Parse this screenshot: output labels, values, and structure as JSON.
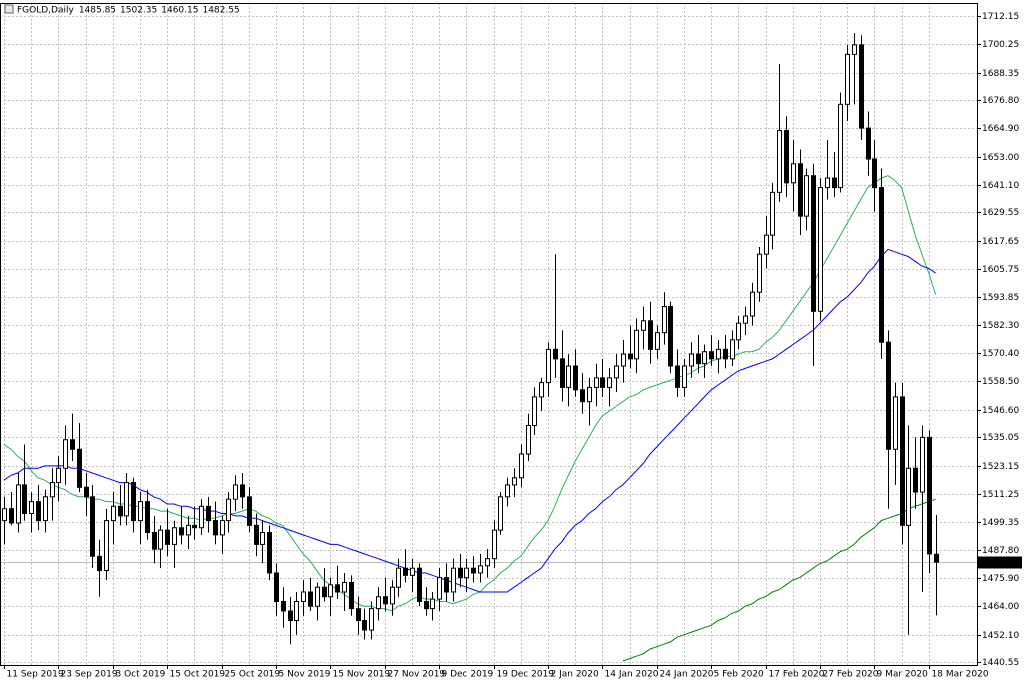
{
  "chart_data": {
    "type": "candlestick",
    "title": "FGOLD,Daily",
    "header_values": [
      "chart_data.open.137",
      "chart_data.high.137",
      "chart_data.low.137",
      "chart_data.close.137"
    ],
    "up_color": "#ffffff",
    "down_color": "#000000",
    "wick_color": "#000000",
    "grid": true,
    "ylim": [
      1439.3,
      1717.6
    ],
    "yticks": [
      1712.15,
      1700.25,
      1688.35,
      {
        "value": 1676.8,
        "label": "1676.80"
      },
      {
        "value": 1664.9,
        "label": "1664.90"
      },
      {
        "value": 1653,
        "label": "1653.00"
      },
      {
        "value": 1641.1,
        "label": "1641.10"
      },
      1629.55,
      1617.65,
      1605.75,
      1593.85,
      {
        "value": 1582.3,
        "label": "1582.30"
      },
      {
        "value": 1570.4,
        "label": "1570.40"
      },
      {
        "value": 1558.5,
        "label": "1558.50"
      },
      {
        "value": 1546.6,
        "label": "1546.60"
      },
      1535.05,
      1523.15,
      1511.25,
      1499.35,
      {
        "value": 1487.8,
        "label": "1487.80"
      },
      {
        "value": 1475.9,
        "label": "1475.90"
      },
      {
        "value": 1464,
        "label": "1464.00"
      },
      {
        "value": 1452.1,
        "label": "1452.10"
      },
      1440.55
    ],
    "categories": [
      "11 Sep 2019",
      null,
      null,
      null,
      null,
      null,
      null,
      null,
      "23 Sep 2019",
      null,
      null,
      null,
      null,
      null,
      null,
      null,
      "3 Oct 2019",
      null,
      null,
      null,
      null,
      null,
      null,
      null,
      "15 Oct 2019",
      null,
      null,
      null,
      null,
      null,
      null,
      null,
      "25 Oct 2019",
      null,
      null,
      null,
      null,
      null,
      null,
      null,
      "5 Nov 2019",
      null,
      null,
      null,
      null,
      null,
      null,
      null,
      "15 Nov 2019",
      null,
      null,
      null,
      null,
      null,
      null,
      null,
      "27 Nov 2019",
      null,
      null,
      null,
      null,
      null,
      null,
      null,
      "9 Dec 2019",
      null,
      null,
      null,
      null,
      null,
      null,
      null,
      "19 Dec 2019",
      null,
      null,
      null,
      null,
      null,
      null,
      null,
      "2 Jan 2020",
      null,
      null,
      null,
      null,
      null,
      null,
      null,
      "14 Jan 2020",
      null,
      null,
      null,
      null,
      null,
      null,
      null,
      "24 Jan 2020",
      null,
      null,
      null,
      null,
      null,
      null,
      null,
      "5 Feb 2020",
      null,
      null,
      null,
      null,
      null,
      null,
      null,
      "17 Feb 2020",
      null,
      null,
      null,
      null,
      null,
      null,
      null,
      "27 Feb 2020",
      null,
      null,
      null,
      null,
      null,
      null,
      null,
      "9 Mar 2020",
      null,
      null,
      null,
      null,
      null,
      null,
      null,
      "18 Mar 2020",
      null
    ],
    "open": [
      1500,
      1505,
      1499,
      1515,
      1503,
      1508,
      1500,
      1510,
      1516,
      1522,
      1534,
      1530,
      1514,
      1510,
      1485,
      1479,
      1500,
      1506,
      1502,
      1516,
      1500,
      1508,
      1495,
      1488,
      1496,
      1490,
      1497,
      1494,
      1498,
      1497,
      1506,
      1500,
      1494,
      1500,
      1509,
      1515,
      1510,
      1498,
      1490,
      1495,
      1478,
      1466,
      1462,
      1458,
      1466,
      1470,
      1464,
      1472,
      1468,
      1473,
      1470,
      1474,
      1463,
      1458,
      1454,
      1463,
      1468,
      1465,
      1472,
      1480,
      1477,
      1480,
      1466,
      1463,
      1467,
      1476,
      1470,
      1480,
      1476,
      1480,
      1478,
      1481,
      1484,
      1496,
      1510,
      1515,
      1518,
      1528,
      1540,
      1552,
      1558,
      1572,
      1568,
      1556,
      1565,
      1555,
      1550,
      1556,
      1560,
      1556,
      1560,
      1565,
      1570,
      1568,
      1580,
      1584,
      1572,
      1579,
      1590,
      1565,
      1556,
      1565,
      1570,
      1566,
      1571,
      1568,
      1572,
      1568,
      1576,
      1583,
      1586,
      1596,
      1612,
      1620,
      1638,
      1664,
      1642,
      1650,
      1628,
      1645,
      1588,
      1640,
      1644,
      1640,
      1675,
      1696,
      1700,
      1665,
      1652,
      1640,
      1575,
      1530,
      1552,
      1498,
      1522,
      1512,
      1535,
      1485.85
    ],
    "high": [
      1510,
      1512,
      1520,
      1532,
      1512,
      1515,
      1513,
      1522,
      1527,
      1540,
      1545,
      1541,
      1520,
      1515,
      1492,
      1505,
      1512,
      1515,
      1520,
      1518,
      1512,
      1513,
      1502,
      1498,
      1505,
      1500,
      1506,
      1502,
      1506,
      1509,
      1510,
      1508,
      1502,
      1512,
      1519,
      1520,
      1514,
      1503,
      1500,
      1498,
      1482,
      1472,
      1468,
      1470,
      1475,
      1476,
      1474,
      1480,
      1476,
      1481,
      1478,
      1477,
      1468,
      1463,
      1466,
      1472,
      1476,
      1475,
      1484,
      1488,
      1484,
      1482,
      1472,
      1470,
      1480,
      1482,
      1484,
      1486,
      1484,
      1485,
      1486,
      1488,
      1500,
      1512,
      1518,
      1522,
      1532,
      1545,
      1556,
      1560,
      1575,
      1612,
      1580,
      1570,
      1572,
      1562,
      1560,
      1566,
      1568,
      1564,
      1570,
      1576,
      1582,
      1585,
      1590,
      1592,
      1582,
      1596,
      1592,
      1572,
      1568,
      1575,
      1578,
      1574,
      1578,
      1576,
      1578,
      1580,
      1586,
      1590,
      1600,
      1615,
      1628,
      1642,
      1692,
      1670,
      1660,
      1656,
      1648,
      1650,
      1644,
      1660,
      1655,
      1680,
      1700,
      1705,
      1704,
      1672,
      1660,
      1648,
      1580,
      1558,
      1558,
      1540,
      1535,
      1540,
      1538,
      1502.35
    ],
    "low": [
      1490,
      1498,
      1495,
      1500,
      1495,
      1496,
      1495,
      1500,
      1508,
      1515,
      1525,
      1512,
      1502,
      1480,
      1468,
      1475,
      1490,
      1498,
      1498,
      1495,
      1490,
      1492,
      1482,
      1480,
      1485,
      1480,
      1490,
      1488,
      1492,
      1494,
      1495,
      1490,
      1486,
      1495,
      1504,
      1505,
      1495,
      1485,
      1482,
      1475,
      1460,
      1455,
      1448,
      1452,
      1460,
      1462,
      1458,
      1466,
      1460,
      1467,
      1462,
      1460,
      1452,
      1450,
      1450,
      1458,
      1462,
      1460,
      1468,
      1474,
      1470,
      1464,
      1460,
      1458,
      1462,
      1466,
      1466,
      1472,
      1470,
      1474,
      1474,
      1476,
      1480,
      1494,
      1506,
      1510,
      1514,
      1525,
      1536,
      1546,
      1552,
      1560,
      1550,
      1548,
      1552,
      1545,
      1540,
      1548,
      1552,
      1548,
      1554,
      1558,
      1564,
      1562,
      1572,
      1566,
      1568,
      1574,
      1562,
      1552,
      1552,
      1560,
      1562,
      1560,
      1565,
      1562,
      1564,
      1565,
      1572,
      1578,
      1582,
      1592,
      1606,
      1614,
      1634,
      1636,
      1630,
      1620,
      1622,
      1565,
      1584,
      1635,
      1636,
      1638,
      1668,
      1675,
      1660,
      1645,
      1630,
      1568,
      1505,
      1515,
      1490,
      1452,
      1505,
      1470,
      1478,
      1460.15
    ],
    "close": [
      1505,
      1499,
      1515,
      1503,
      1508,
      1500,
      1510,
      1516,
      1522,
      1534,
      1530,
      1514,
      1510,
      1485,
      1479,
      1500,
      1506,
      1502,
      1516,
      1500,
      1508,
      1495,
      1488,
      1496,
      1490,
      1497,
      1494,
      1498,
      1497,
      1506,
      1500,
      1494,
      1500,
      1509,
      1515,
      1510,
      1498,
      1490,
      1495,
      1478,
      1466,
      1462,
      1458,
      1466,
      1470,
      1464,
      1472,
      1468,
      1473,
      1470,
      1474,
      1463,
      1458,
      1454,
      1463,
      1468,
      1465,
      1472,
      1480,
      1477,
      1480,
      1466,
      1463,
      1467,
      1476,
      1470,
      1480,
      1476,
      1480,
      1478,
      1481,
      1484,
      1496,
      1510,
      1515,
      1518,
      1528,
      1540,
      1552,
      1558,
      1572,
      1568,
      1556,
      1565,
      1555,
      1550,
      1556,
      1560,
      1556,
      1560,
      1565,
      1570,
      1568,
      1580,
      1584,
      1572,
      1579,
      1590,
      1565,
      1556,
      1565,
      1570,
      1566,
      1571,
      1568,
      1572,
      1568,
      1576,
      1583,
      1586,
      1596,
      1612,
      1620,
      1638,
      1664,
      1642,
      1650,
      1628,
      1645,
      1588,
      1640,
      1644,
      1640,
      1675,
      1696,
      1700,
      1665,
      1652,
      1640,
      1575,
      1530,
      1552,
      1498,
      1522,
      1512,
      1535,
      1486,
      1482.55
    ],
    "overlays": [
      {
        "color": "#2fae5a",
        "values": [
          1532,
          1530,
          1527,
          1525,
          1521,
          1518,
          1517,
          1515,
          1514,
          1513,
          1511,
          1510,
          1510,
          1509,
          1509,
          1508,
          1508,
          1507,
          1507,
          1506,
          1506,
          1505,
          1505,
          1504,
          1504,
          1503,
          1502,
          1501,
          1501,
          1500,
          1501,
          1501,
          1502,
          1503,
          1503,
          1504,
          1505,
          1504,
          1502,
          1501,
          1499,
          1498,
          1494,
          1490,
          1486,
          1483,
          1479,
          1475,
          1473,
          1471,
          1469,
          1467,
          1465,
          1464,
          1464,
          1463,
          1463,
          1462,
          1464,
          1465,
          1467,
          1468,
          1467,
          1467,
          1466,
          1466,
          1465,
          1466,
          1467,
          1469,
          1470,
          1473,
          1475,
          1478,
          1480,
          1483,
          1485,
          1489,
          1493,
          1496,
          1500,
          1506,
          1513,
          1519,
          1525,
          1530,
          1535,
          1540,
          1544,
          1546,
          1548,
          1550,
          1552,
          1553,
          1555,
          1556,
          1557,
          1558,
          1559,
          1560,
          1561,
          1562,
          1564,
          1565,
          1567,
          1568,
          1569,
          1569,
          1570,
          1571,
          1571,
          1572,
          1575,
          1577,
          1580,
          1584,
          1588,
          1592,
          1596,
          1600,
          1605,
          1610,
          1615,
          1620,
          1625,
          1630,
          1635,
          1640,
          1642,
          1644,
          1645,
          1643,
          1640,
          1630,
          1620,
          1612,
          1604,
          1595
        ]
      },
      {
        "color": "#0000ff",
        "values": [
          1517,
          1519,
          1520,
          1522,
          1522,
          1522,
          1523,
          1523,
          1523,
          1523,
          1522,
          1522,
          1521,
          1520,
          1519,
          1518,
          1517,
          1516,
          1516,
          1515,
          1513,
          1512,
          1510,
          1509,
          1507,
          1507,
          1506,
          1506,
          1505,
          1505,
          1504,
          1504,
          1503,
          1503,
          1502,
          1502,
          1501,
          1501,
          1500,
          1499,
          1498,
          1497,
          1496,
          1495,
          1494,
          1493,
          1492,
          1491,
          1490,
          1490,
          1489,
          1488,
          1487,
          1486,
          1485,
          1484,
          1483,
          1482,
          1481,
          1480,
          1479,
          1478,
          1478,
          1477,
          1476,
          1475,
          1474,
          1473,
          1472,
          1471,
          1470,
          1470,
          1470,
          1470,
          1470,
          1472,
          1474,
          1476,
          1478,
          1480,
          1484,
          1488,
          1491,
          1495,
          1498,
          1500,
          1503,
          1505,
          1508,
          1510,
          1513,
          1515,
          1518,
          1521,
          1524,
          1528,
          1531,
          1534,
          1537,
          1540,
          1543,
          1546,
          1549,
          1552,
          1555,
          1557,
          1559,
          1561,
          1563,
          1564,
          1565,
          1566,
          1567,
          1568,
          1570,
          1572,
          1574,
          1576,
          1578,
          1580,
          1583,
          1586,
          1589,
          1592,
          1594,
          1597,
          1600,
          1604,
          1607,
          1611,
          1614,
          1613,
          1612,
          1611,
          1609,
          1607,
          1606,
          1604
        ]
      },
      {
        "color": "#008000",
        "values": [
          null,
          null,
          null,
          null,
          null,
          null,
          null,
          null,
          null,
          null,
          null,
          null,
          null,
          null,
          null,
          null,
          null,
          null,
          null,
          null,
          null,
          null,
          null,
          null,
          null,
          null,
          null,
          null,
          null,
          null,
          null,
          null,
          null,
          null,
          null,
          null,
          null,
          null,
          null,
          null,
          null,
          null,
          null,
          null,
          null,
          null,
          null,
          null,
          null,
          null,
          null,
          null,
          null,
          null,
          null,
          null,
          null,
          null,
          null,
          null,
          null,
          null,
          null,
          null,
          null,
          null,
          null,
          null,
          null,
          null,
          null,
          null,
          null,
          null,
          null,
          null,
          null,
          null,
          null,
          null,
          null,
          null,
          null,
          null,
          null,
          null,
          null,
          null,
          null,
          null,
          null,
          1441,
          1442,
          1443,
          1444,
          1446,
          1447,
          1448,
          1449,
          1451,
          1452,
          1453,
          1454,
          1455,
          1456,
          1458,
          1459,
          1461,
          1462,
          1464,
          1465,
          1467,
          1468,
          1470,
          1471,
          1473,
          1475,
          1476,
          1478,
          1480,
          1482,
          1483,
          1485,
          1487,
          1488,
          1490,
          1493,
          1495,
          1497,
          1500,
          1501,
          1502,
          1503,
          1505,
          1506,
          1507,
          1508,
          1509
        ]
      }
    ]
  }
}
